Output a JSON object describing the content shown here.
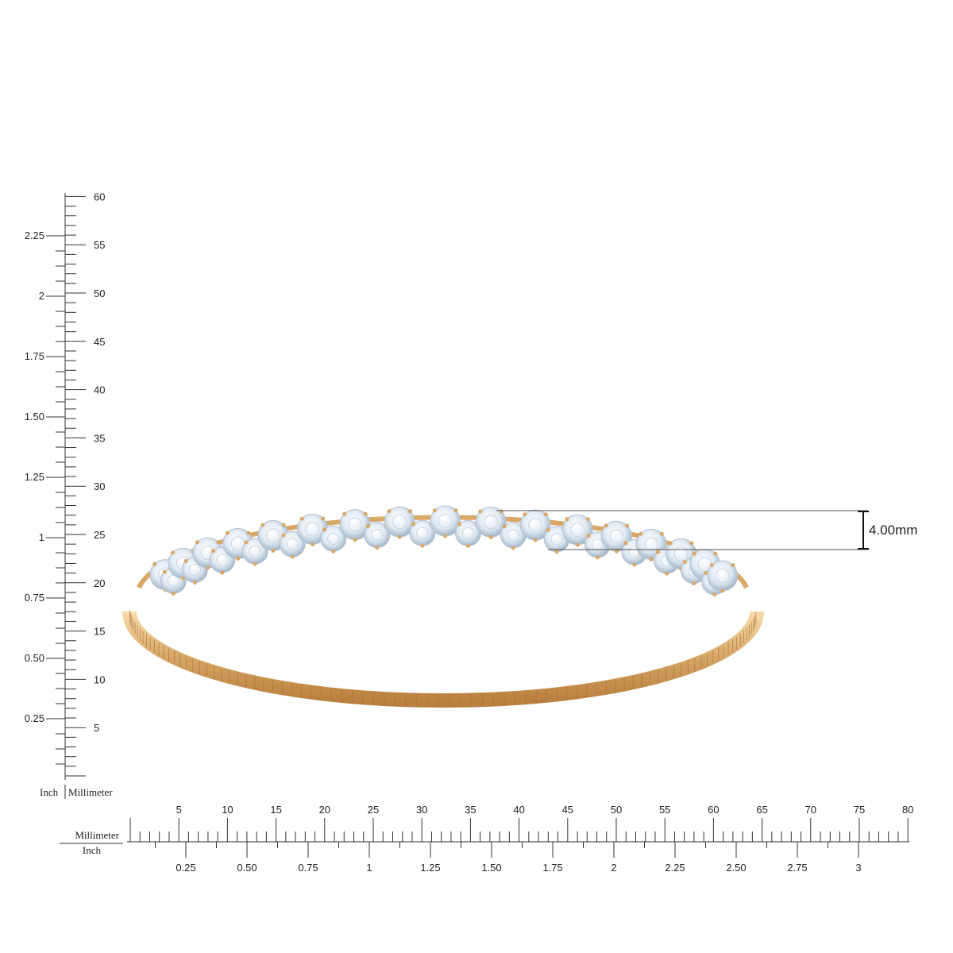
{
  "rulers": {
    "vertical": {
      "mm_labels": [
        5,
        10,
        15,
        20,
        25,
        30,
        35,
        40,
        45,
        50,
        55,
        60
      ],
      "inch_labels": [
        "0.25",
        "0.50",
        "0.75",
        "1",
        "1.25",
        "1.50",
        "1.75",
        "2",
        "2.25"
      ],
      "unit_left": "Inch",
      "unit_right": "Millimeter"
    },
    "horizontal": {
      "mm_labels": [
        5,
        10,
        15,
        20,
        25,
        30,
        35,
        40,
        45,
        50,
        55,
        60,
        65,
        70,
        75,
        80
      ],
      "inch_labels": [
        "0.25",
        "0.50",
        "0.75",
        "1",
        "1.25",
        "1.50",
        "1.75",
        "2",
        "2.25",
        "2.50",
        "2.75",
        "3"
      ],
      "unit_top": "Millimeter",
      "unit_bottom": "Inch"
    }
  },
  "dimension": {
    "label": "4.00mm"
  }
}
